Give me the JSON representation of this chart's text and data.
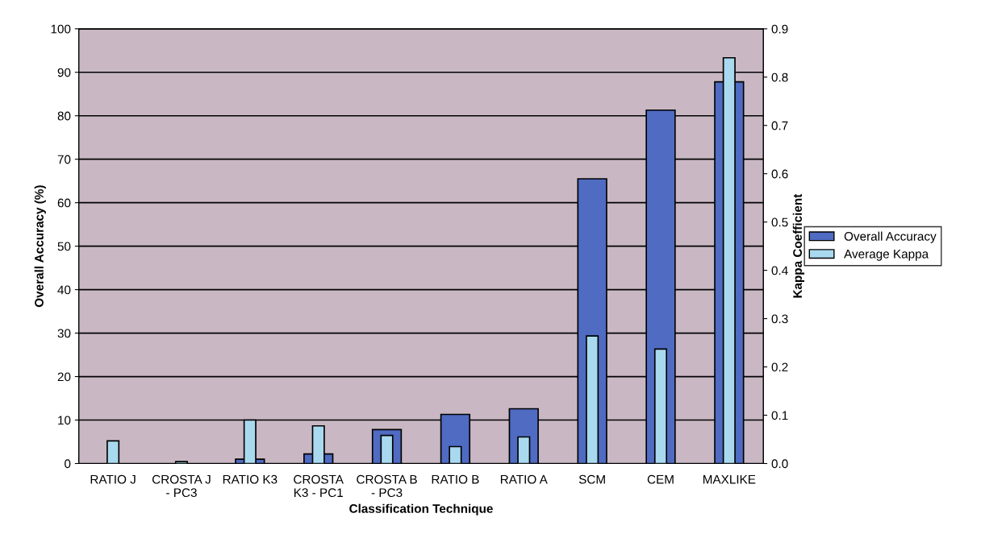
{
  "chart_data": {
    "type": "bar",
    "xlabel": "Classification Technique",
    "ylabel": "Overall Accuracy (%)",
    "y2label": "Kappa Coefficient",
    "categories": [
      "RATIO J",
      "CROSTA J\n- PC3",
      "RATIO K3",
      "CROSTA\nK3 - PC1",
      "CROSTA B\n- PC3",
      "RATIO B",
      "RATIO A",
      "SCM",
      "CEM",
      "MAXLIKE"
    ],
    "series": [
      {
        "name": "Overall Accuracy",
        "color": "#4f6bc2",
        "values": [
          null,
          null,
          1,
          2.2,
          7.8,
          11.3,
          12.6,
          65.5,
          81.3,
          87.8
        ]
      },
      {
        "name": "Average Kappa",
        "color": "#a9d9ee",
        "axis": "y2",
        "values": [
          0.047,
          0.004,
          0.09,
          0.078,
          0.058,
          0.035,
          0.055,
          0.264,
          0.237,
          0.84
        ]
      }
    ],
    "ylim": [
      0,
      100
    ],
    "yticks": [
      0,
      10,
      20,
      30,
      40,
      50,
      60,
      70,
      80,
      90,
      100
    ],
    "y2lim": [
      0,
      0.9
    ],
    "y2ticks": [
      {
        "value": 0,
        "label": "0.0"
      },
      {
        "value": 0.1,
        "label": "0.1"
      },
      {
        "value": 0.2,
        "label": "0.2"
      },
      {
        "value": 0.3,
        "label": "0.3"
      },
      {
        "value": 0.4,
        "label": "0.4"
      },
      {
        "value": 0.5,
        "label": "0.5"
      },
      {
        "value": 0.6,
        "label": "0.6"
      },
      {
        "value": 0.7,
        "label": "0.7"
      },
      {
        "value": 0.8,
        "label": "0.8"
      },
      {
        "value": 0.9,
        "label": "0.9"
      }
    ],
    "grid": "y",
    "legend": "right"
  }
}
